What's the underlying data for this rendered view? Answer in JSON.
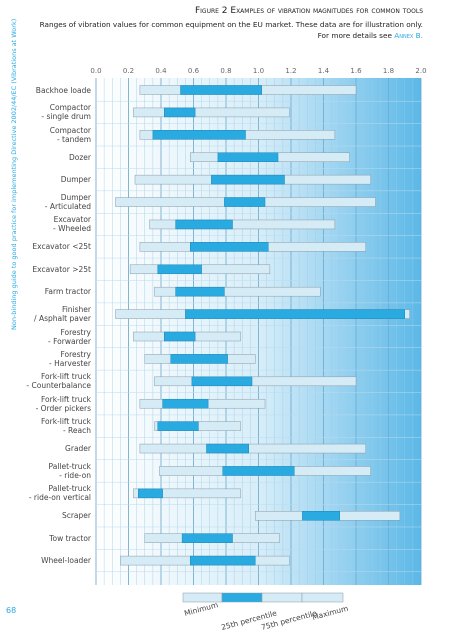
{
  "chart_data": {
    "type": "range-bar",
    "title": "Figure 2 Examples of vibration magnitudes for common tools",
    "subtitle": "Ranges of vibration values for common equipment on the EU market. These data are for illustration only.",
    "note": "For more details see",
    "note_link": "Annex B.",
    "side_text": "Non-binding guide to good practice for implementing Directive 2002/44/EC (Vibrations at Work)",
    "page_number": "68",
    "categories": [
      "Backhoe loade",
      "Compactor\n- single drum",
      "Compactor\n- tandem",
      "Dozer",
      "Dumper",
      "Dumper\n- Articulated",
      "Excavator\n- Wheeled",
      "Excavator <25t",
      "Excavator >25t",
      "Farm tractor",
      "Finisher\n/ Asphalt paver",
      "Forestry\n- Forwarder",
      "Forestry\n- Harvester",
      "Fork-lift truck\n- Counterbalance",
      "Fork-lift truck\n- Order pickers",
      "Fork-lift truck\n- Reach",
      "Grader",
      "Pallet-truck\n- ride-on",
      "Pallet-truck\n- ride-on vertical",
      "Scraper",
      "Tow tractor",
      "Wheel-loader"
    ],
    "series": [
      {
        "name": "Minimum",
        "color": "#d5ebf6",
        "values": [
          0.27,
          0.23,
          0.27,
          0.58,
          0.24,
          0.12,
          0.33,
          0.27,
          0.21,
          0.36,
          0.12,
          0.23,
          0.3,
          0.36,
          0.27,
          0.36,
          0.27,
          0.39,
          0.23,
          0.98,
          0.3,
          0.15
        ]
      },
      {
        "name": "25th percentile",
        "color": "#29aae1",
        "values": [
          0.52,
          0.42,
          0.35,
          0.75,
          0.71,
          0.79,
          0.49,
          0.58,
          0.38,
          0.49,
          0.55,
          0.42,
          0.46,
          0.59,
          0.41,
          0.38,
          0.68,
          0.78,
          0.26,
          1.27,
          0.53,
          0.58
        ]
      },
      {
        "name": "75th percentile",
        "color": "#29aae1",
        "values": [
          1.02,
          0.61,
          0.92,
          1.12,
          1.16,
          1.04,
          0.84,
          1.06,
          0.65,
          0.79,
          1.9,
          0.61,
          0.81,
          0.96,
          0.69,
          0.63,
          0.94,
          1.22,
          0.41,
          1.5,
          0.84,
          0.98
        ]
      },
      {
        "name": "Maximum",
        "color": "#d5ebf6",
        "values": [
          1.6,
          1.19,
          1.47,
          1.56,
          1.69,
          1.72,
          1.47,
          1.66,
          1.07,
          1.38,
          1.93,
          0.89,
          0.98,
          1.6,
          1.04,
          0.89,
          1.66,
          1.69,
          0.89,
          1.87,
          1.13,
          1.19
        ]
      }
    ],
    "xlim": [
      0,
      2
    ],
    "xticks": [
      {
        "value": 0,
        "label": "0.0"
      },
      0.2,
      0.4,
      0.6,
      0.8,
      {
        "value": 1,
        "label": "1.0"
      },
      1.2,
      1.4,
      1.6,
      1.8,
      {
        "value": 2,
        "label": "2.0"
      }
    ]
  }
}
